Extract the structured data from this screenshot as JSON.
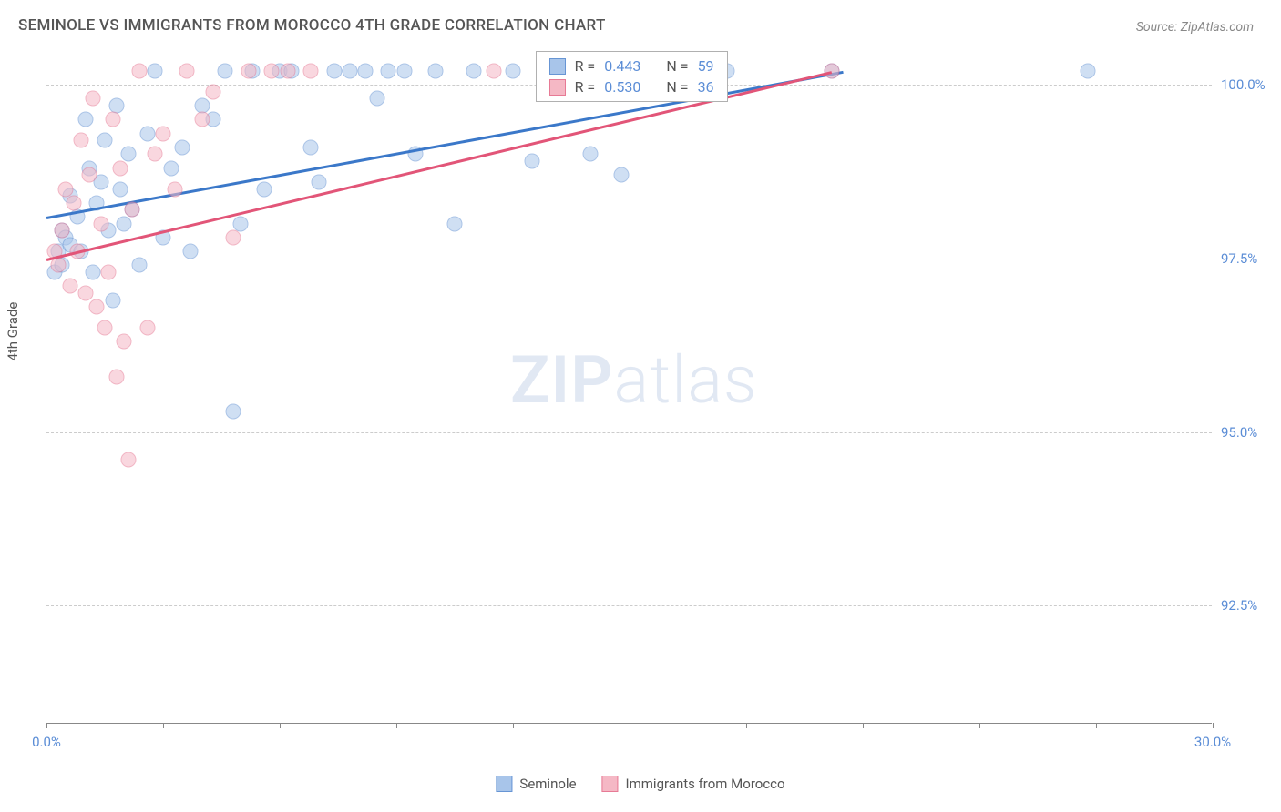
{
  "title": "SEMINOLE VS IMMIGRANTS FROM MOROCCO 4TH GRADE CORRELATION CHART",
  "source_label": "Source: ZipAtlas.com",
  "y_axis_title": "4th Grade",
  "watermark_bold": "ZIP",
  "watermark_light": "atlas",
  "chart": {
    "type": "scatter",
    "background_color": "#ffffff",
    "grid_color": "#cccccc",
    "axis_color": "#888888",
    "tick_label_color": "#5b8dd6",
    "text_color": "#555555",
    "x_range": [
      0,
      30
    ],
    "y_range": [
      90.8,
      100.5
    ],
    "x_ticks": [
      0,
      3,
      6,
      9,
      12,
      15,
      18,
      21,
      24,
      27,
      30
    ],
    "x_tick_labels": {
      "0": "0.0%",
      "30": "30.0%"
    },
    "y_gridlines": [
      92.5,
      95.0,
      97.5,
      100.0
    ],
    "y_tick_labels": {
      "92.5": "92.5%",
      "95.0": "95.0%",
      "97.5": "97.5%",
      "100.0": "100.0%"
    },
    "marker_radius": 8.5,
    "marker_opacity": 0.55,
    "line_width": 2.5
  },
  "series": [
    {
      "name": "Seminole",
      "fill_color": "#a8c5ea",
      "stroke_color": "#6795d4",
      "line_color": "#3b78c9",
      "stats": {
        "R_label": "R =",
        "R_value": "0.443",
        "N_label": "N =",
        "N_value": "59"
      },
      "trend": {
        "x1": 0,
        "y1": 98.1,
        "x2": 20.5,
        "y2": 100.2
      },
      "points": [
        [
          0.2,
          97.3
        ],
        [
          0.3,
          97.6
        ],
        [
          0.4,
          97.9
        ],
        [
          0.4,
          97.4
        ],
        [
          0.5,
          97.8
        ],
        [
          0.6,
          98.4
        ],
        [
          0.6,
          97.7
        ],
        [
          0.8,
          98.1
        ],
        [
          0.9,
          97.6
        ],
        [
          1.0,
          99.5
        ],
        [
          1.1,
          98.8
        ],
        [
          1.2,
          97.3
        ],
        [
          1.3,
          98.3
        ],
        [
          1.4,
          98.6
        ],
        [
          1.5,
          99.2
        ],
        [
          1.6,
          97.9
        ],
        [
          1.7,
          96.9
        ],
        [
          1.8,
          99.7
        ],
        [
          1.9,
          98.5
        ],
        [
          2.0,
          98.0
        ],
        [
          2.1,
          99.0
        ],
        [
          2.2,
          98.2
        ],
        [
          2.4,
          97.4
        ],
        [
          2.6,
          99.3
        ],
        [
          2.8,
          100.2
        ],
        [
          3.0,
          97.8
        ],
        [
          3.2,
          98.8
        ],
        [
          3.5,
          99.1
        ],
        [
          3.7,
          97.6
        ],
        [
          4.0,
          99.7
        ],
        [
          4.3,
          99.5
        ],
        [
          4.6,
          100.2
        ],
        [
          4.8,
          95.3
        ],
        [
          5.0,
          98.0
        ],
        [
          5.3,
          100.2
        ],
        [
          5.6,
          98.5
        ],
        [
          6.0,
          100.2
        ],
        [
          6.3,
          100.2
        ],
        [
          6.8,
          99.1
        ],
        [
          7.0,
          98.6
        ],
        [
          7.4,
          100.2
        ],
        [
          7.8,
          100.2
        ],
        [
          8.2,
          100.2
        ],
        [
          8.5,
          99.8
        ],
        [
          8.8,
          100.2
        ],
        [
          9.2,
          100.2
        ],
        [
          9.5,
          99.0
        ],
        [
          10.0,
          100.2
        ],
        [
          10.5,
          98.0
        ],
        [
          11.0,
          100.2
        ],
        [
          12.0,
          100.2
        ],
        [
          12.5,
          98.9
        ],
        [
          13.0,
          100.2
        ],
        [
          14.0,
          99.0
        ],
        [
          14.8,
          98.7
        ],
        [
          15.5,
          100.2
        ],
        [
          17.5,
          100.2
        ],
        [
          20.2,
          100.2
        ],
        [
          26.8,
          100.2
        ]
      ]
    },
    {
      "name": "Immigrants from Morocco",
      "fill_color": "#f5b8c5",
      "stroke_color": "#e77a95",
      "line_color": "#e25578",
      "stats": {
        "R_label": "R =",
        "R_value": "0.530",
        "N_label": "N =",
        "N_value": "36"
      },
      "trend": {
        "x1": 0,
        "y1": 97.5,
        "x2": 20.2,
        "y2": 100.2
      },
      "points": [
        [
          0.2,
          97.6
        ],
        [
          0.3,
          97.4
        ],
        [
          0.4,
          97.9
        ],
        [
          0.5,
          98.5
        ],
        [
          0.6,
          97.1
        ],
        [
          0.7,
          98.3
        ],
        [
          0.8,
          97.6
        ],
        [
          0.9,
          99.2
        ],
        [
          1.0,
          97.0
        ],
        [
          1.1,
          98.7
        ],
        [
          1.2,
          99.8
        ],
        [
          1.3,
          96.8
        ],
        [
          1.4,
          98.0
        ],
        [
          1.5,
          96.5
        ],
        [
          1.6,
          97.3
        ],
        [
          1.7,
          99.5
        ],
        [
          1.8,
          95.8
        ],
        [
          1.9,
          98.8
        ],
        [
          2.0,
          96.3
        ],
        [
          2.1,
          94.6
        ],
        [
          2.2,
          98.2
        ],
        [
          2.4,
          100.2
        ],
        [
          2.6,
          96.5
        ],
        [
          2.8,
          99.0
        ],
        [
          3.0,
          99.3
        ],
        [
          3.3,
          98.5
        ],
        [
          3.6,
          100.2
        ],
        [
          4.0,
          99.5
        ],
        [
          4.3,
          99.9
        ],
        [
          4.8,
          97.8
        ],
        [
          5.2,
          100.2
        ],
        [
          5.8,
          100.2
        ],
        [
          6.2,
          100.2
        ],
        [
          6.8,
          100.2
        ],
        [
          11.5,
          100.2
        ],
        [
          20.2,
          100.2
        ]
      ]
    }
  ],
  "legend_bottom": [
    {
      "label": "Seminole",
      "fill": "#a8c5ea",
      "stroke": "#6795d4"
    },
    {
      "label": "Immigrants from Morocco",
      "fill": "#f5b8c5",
      "stroke": "#e77a95"
    }
  ]
}
